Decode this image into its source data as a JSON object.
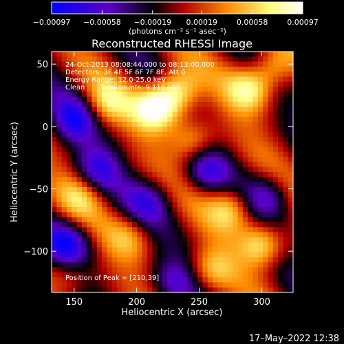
{
  "chart_data": {
    "type": "heatmap",
    "title": "Reconstructed RHESSI Image",
    "xlabel": "Heliocentric X (arcsec)",
    "ylabel": "Heliocentric Y (arcsec)",
    "xlim": [
      132,
      325
    ],
    "ylim": [
      -133,
      60
    ],
    "x_ticks": [
      150,
      200,
      250,
      300
    ],
    "y_ticks": [
      50,
      0,
      -50,
      -100
    ],
    "x_tick_labels": [
      "150",
      "200",
      "250",
      "300"
    ],
    "y_tick_labels": [
      "50",
      "0",
      "−50",
      "−100"
    ],
    "colorbar": {
      "range": [
        -0.00097,
        0.00097
      ],
      "ticks": [
        -0.00097,
        -0.00058,
        -0.00019,
        0.00019,
        0.00058,
        0.00097
      ],
      "tick_labels": [
        "−0.00097",
        "−0.00058",
        "−0.00019",
        "0.00019",
        "0.00058",
        "0.00097"
      ],
      "units": "(photons cm⁻² s⁻¹ asec⁻²)",
      "colormap": [
        "#0000ff",
        "#5a00c8",
        "#000000",
        "#b40000",
        "#ff8c00",
        "#ffff80",
        "#ffffff"
      ]
    },
    "annotations": {
      "time": "24-Oct-2013 08:08:44.000 to 08:13:00.000",
      "detectors": "Detectors: 3F 4F 5F 6F 7F 8F, Att 0",
      "energy": "Energy Range: 12.0-25.0 keV",
      "clean": "Clean",
      "counts": "Total counts: 9.11E+03",
      "peak": "Position of Peak = [210,39]"
    },
    "peak_position": [
      210,
      39
    ],
    "bright_sources": [
      {
        "x": 215,
        "y": 15,
        "level": 0.95
      },
      {
        "x": 232,
        "y": 28,
        "level": 0.85
      },
      {
        "x": 175,
        "y": 18,
        "level": 0.55
      },
      {
        "x": 245,
        "y": -12,
        "level": 0.6
      },
      {
        "x": 290,
        "y": 30,
        "level": 0.7
      },
      {
        "x": 310,
        "y": 48,
        "level": 0.6
      },
      {
        "x": 275,
        "y": -65,
        "level": 0.65
      },
      {
        "x": 300,
        "y": -95,
        "level": 0.75
      },
      {
        "x": 260,
        "y": -115,
        "level": 0.5
      },
      {
        "x": 155,
        "y": -55,
        "level": 0.45
      },
      {
        "x": 195,
        "y": -88,
        "level": 0.4
      },
      {
        "x": 145,
        "y": -118,
        "level": 0.35
      }
    ],
    "dark_sources": [
      {
        "x": 150,
        "y": 5,
        "level": -0.7
      },
      {
        "x": 168,
        "y": -35,
        "level": -0.6
      },
      {
        "x": 145,
        "y": -95,
        "level": -0.75
      },
      {
        "x": 210,
        "y": -60,
        "level": -0.5
      },
      {
        "x": 255,
        "y": -35,
        "level": -0.55
      },
      {
        "x": 305,
        "y": -55,
        "level": -0.5
      },
      {
        "x": 230,
        "y": -125,
        "level": -0.45
      }
    ]
  },
  "footer": {
    "timestamp": "17–May–2022 12:38"
  }
}
